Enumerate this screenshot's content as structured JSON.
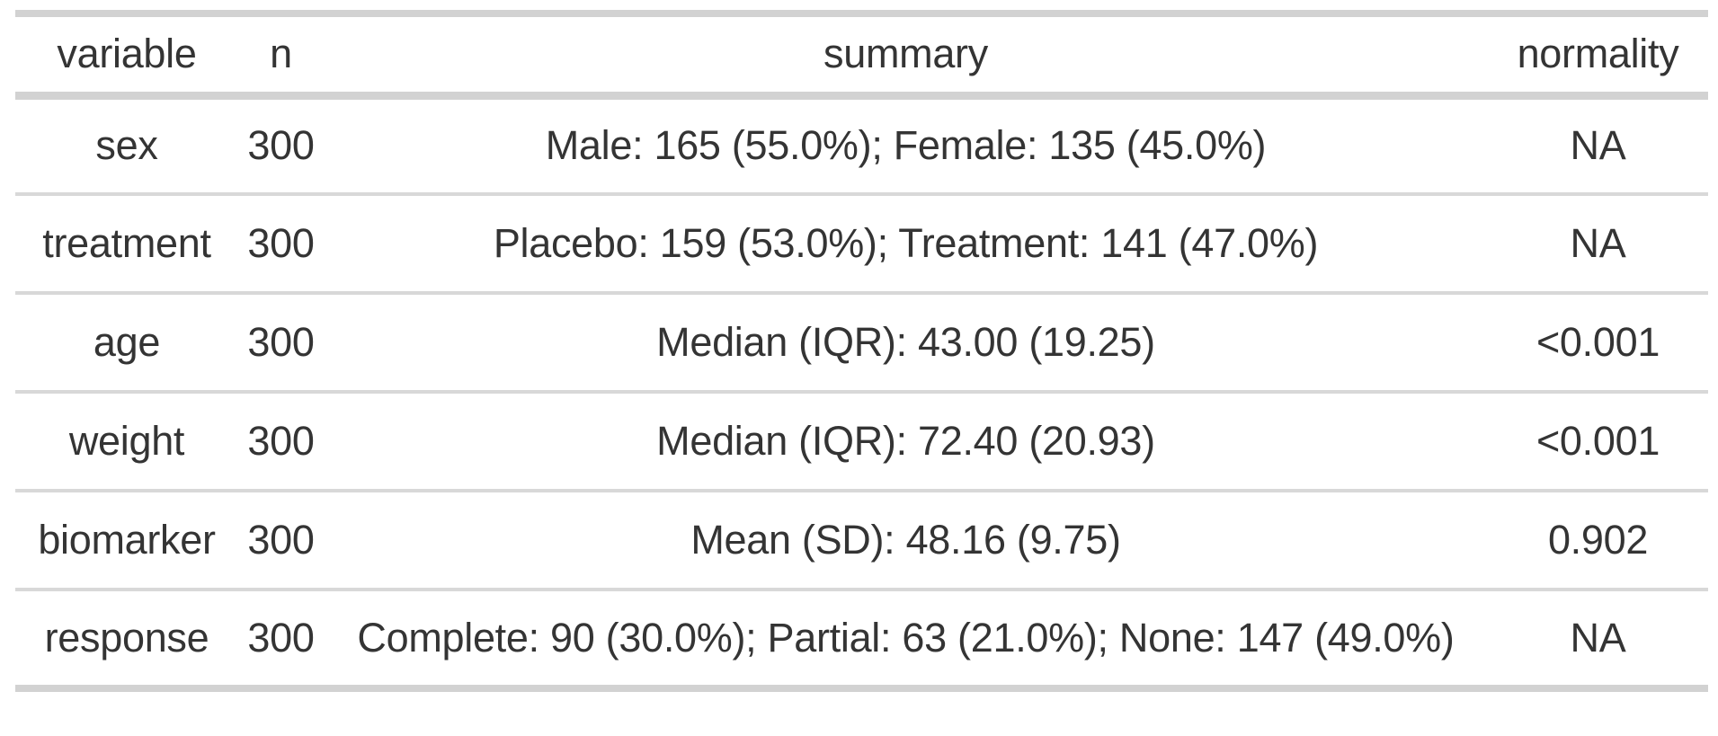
{
  "theme": {
    "border_thick_color": "#d2d2d2",
    "border_thin_color": "#d8d8d8",
    "text_color": "#343434",
    "background_color": "#ffffff"
  },
  "table": {
    "columns": [
      {
        "key": "variable",
        "label": "variable"
      },
      {
        "key": "n",
        "label": "n"
      },
      {
        "key": "summary",
        "label": "summary"
      },
      {
        "key": "normality",
        "label": "normality"
      }
    ],
    "rows": [
      {
        "variable": "sex",
        "n": "300",
        "summary": "Male: 165 (55.0%); Female: 135 (45.0%)",
        "normality": "NA"
      },
      {
        "variable": "treatment",
        "n": "300",
        "summary": "Placebo: 159 (53.0%); Treatment: 141 (47.0%)",
        "normality": "NA"
      },
      {
        "variable": "age",
        "n": "300",
        "summary": "Median (IQR): 43.00 (19.25)",
        "normality": "<0.001"
      },
      {
        "variable": "weight",
        "n": "300",
        "summary": "Median (IQR): 72.40 (20.93)",
        "normality": "<0.001"
      },
      {
        "variable": "biomarker",
        "n": "300",
        "summary": "Mean (SD): 48.16 (9.75)",
        "normality": "0.902"
      },
      {
        "variable": "response",
        "n": "300",
        "summary": "Complete: 90 (30.0%); Partial: 63 (21.0%); None: 147 (49.0%)",
        "normality": "NA"
      }
    ]
  },
  "chart_data": {
    "type": "table",
    "title": "",
    "columns": [
      "variable",
      "n",
      "summary",
      "normality"
    ],
    "rows": [
      [
        "sex",
        300,
        "Male: 165 (55.0%); Female: 135 (45.0%)",
        "NA"
      ],
      [
        "treatment",
        300,
        "Placebo: 159 (53.0%); Treatment: 141 (47.0%)",
        "NA"
      ],
      [
        "age",
        300,
        "Median (IQR): 43.00 (19.25)",
        "<0.001"
      ],
      [
        "weight",
        300,
        "Median (IQR): 72.40 (20.93)",
        "<0.001"
      ],
      [
        "biomarker",
        300,
        "Mean (SD): 48.16 (9.75)",
        "0.902"
      ],
      [
        "response",
        300,
        "Complete: 90 (30.0%); Partial: 63 (21.0%); None: 147 (49.0%)",
        "NA"
      ]
    ]
  }
}
